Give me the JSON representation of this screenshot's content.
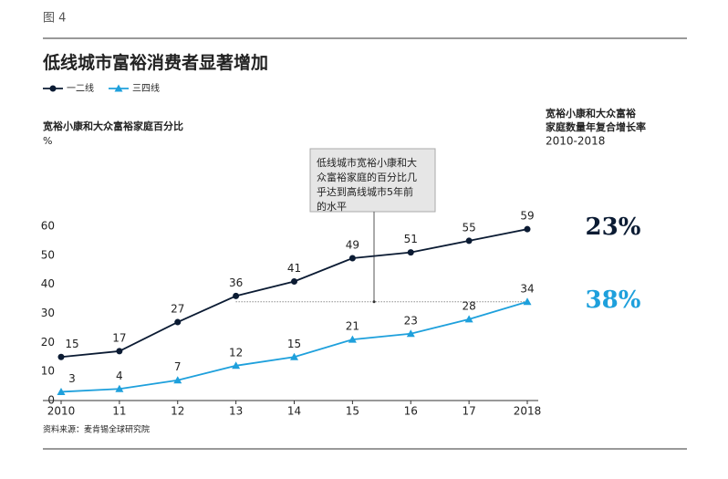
{
  "chart_data": {
    "type": "line",
    "figure_label": "图 4",
    "title": "低线城市富裕消费者显著增加",
    "y_label": "宽裕小康和大众富裕家庭百分比",
    "y_unit": "%",
    "categories": [
      "2010",
      "11",
      "12",
      "13",
      "14",
      "15",
      "16",
      "17",
      "2018"
    ],
    "series": [
      {
        "name": "一二线",
        "color": "#0b1b33",
        "marker": "circle",
        "values": [
          15,
          17,
          27,
          36,
          41,
          49,
          51,
          55,
          59
        ],
        "cagr": 23,
        "cagr_label": "23%"
      },
      {
        "name": "三四线",
        "color": "#1ea0dc",
        "marker": "triangle",
        "values": [
          3,
          4,
          7,
          12,
          15,
          21,
          23,
          28,
          34
        ],
        "cagr": 38,
        "cagr_label": "38%"
      }
    ],
    "ylim": [
      0,
      60
    ],
    "yticks": [
      0,
      10,
      20,
      30,
      40,
      50,
      60
    ],
    "cagr_title": [
      "宽裕小康和大众富裕",
      "家庭数量年复合增长率"
    ],
    "cagr_period": "2010-2018",
    "annotation": [
      "低线城市宽裕小康和大",
      "众富裕家庭的百分比几",
      "乎达到高线城市5年前",
      "的水平"
    ],
    "source": "资料来源：麦肯锡全球研究院"
  }
}
